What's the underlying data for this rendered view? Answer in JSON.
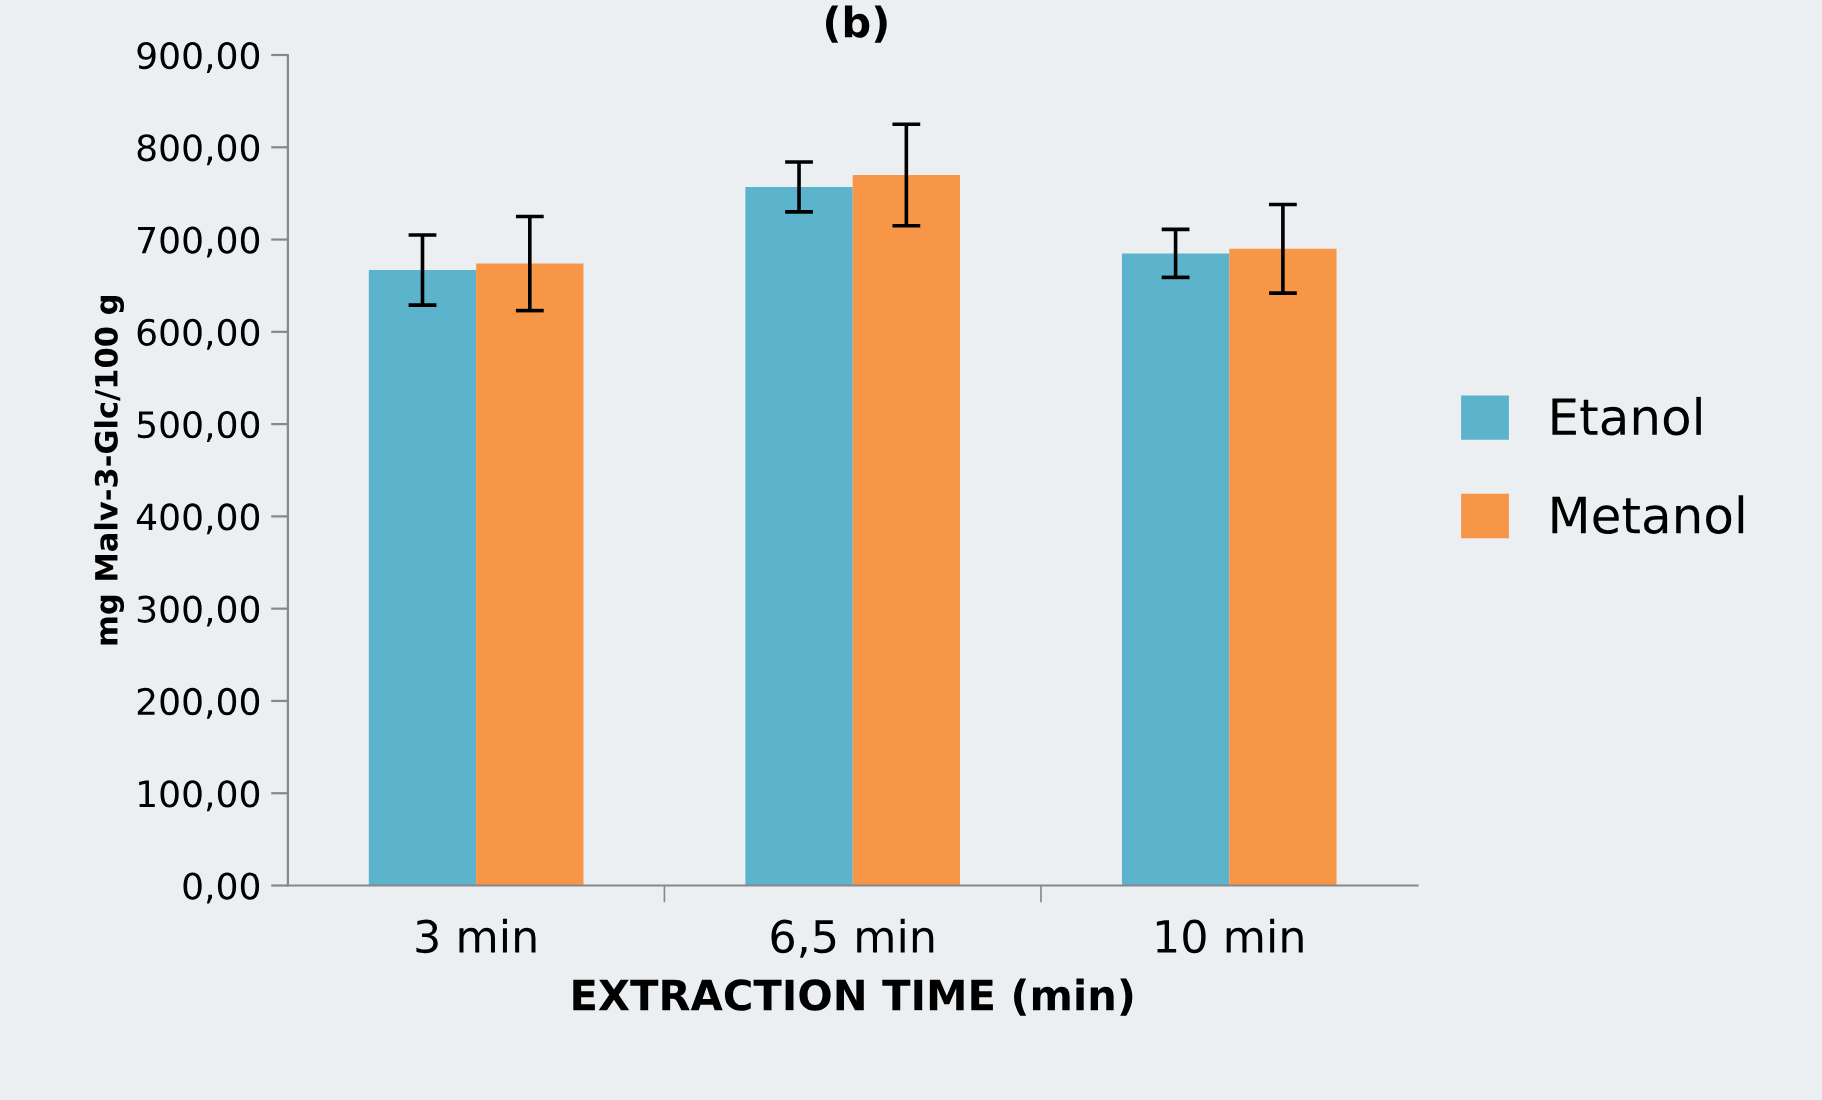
{
  "chart_data": {
    "type": "bar",
    "title": "(b)",
    "xlabel": "EXTRACTION TIME (min)",
    "ylabel": "mg Malv-3-Glc/100 g",
    "categories": [
      "3 min",
      "6,5 min",
      "10 min"
    ],
    "series": [
      {
        "name": "Etanol",
        "color": "#5bb3cc",
        "values": [
          667,
          757,
          685
        ],
        "errors": [
          38,
          27,
          26
        ]
      },
      {
        "name": "Metanol",
        "color": "#f79646",
        "values": [
          674,
          770,
          690
        ],
        "errors": [
          51,
          55,
          48
        ]
      }
    ],
    "ylim": [
      0,
      900
    ],
    "yticks": [
      {
        "value": 0,
        "label": "0,00"
      },
      {
        "value": 100,
        "label": "100,00"
      },
      {
        "value": 200,
        "label": "200,00"
      },
      {
        "value": 300,
        "label": "300,00"
      },
      {
        "value": 400,
        "label": "400,00"
      },
      {
        "value": 500,
        "label": "500,00"
      },
      {
        "value": 600,
        "label": "600,00"
      },
      {
        "value": 700,
        "label": "700,00"
      },
      {
        "value": 800,
        "label": "800,00"
      },
      {
        "value": 900,
        "label": "900,00"
      }
    ],
    "grid": false,
    "legend": "right"
  }
}
